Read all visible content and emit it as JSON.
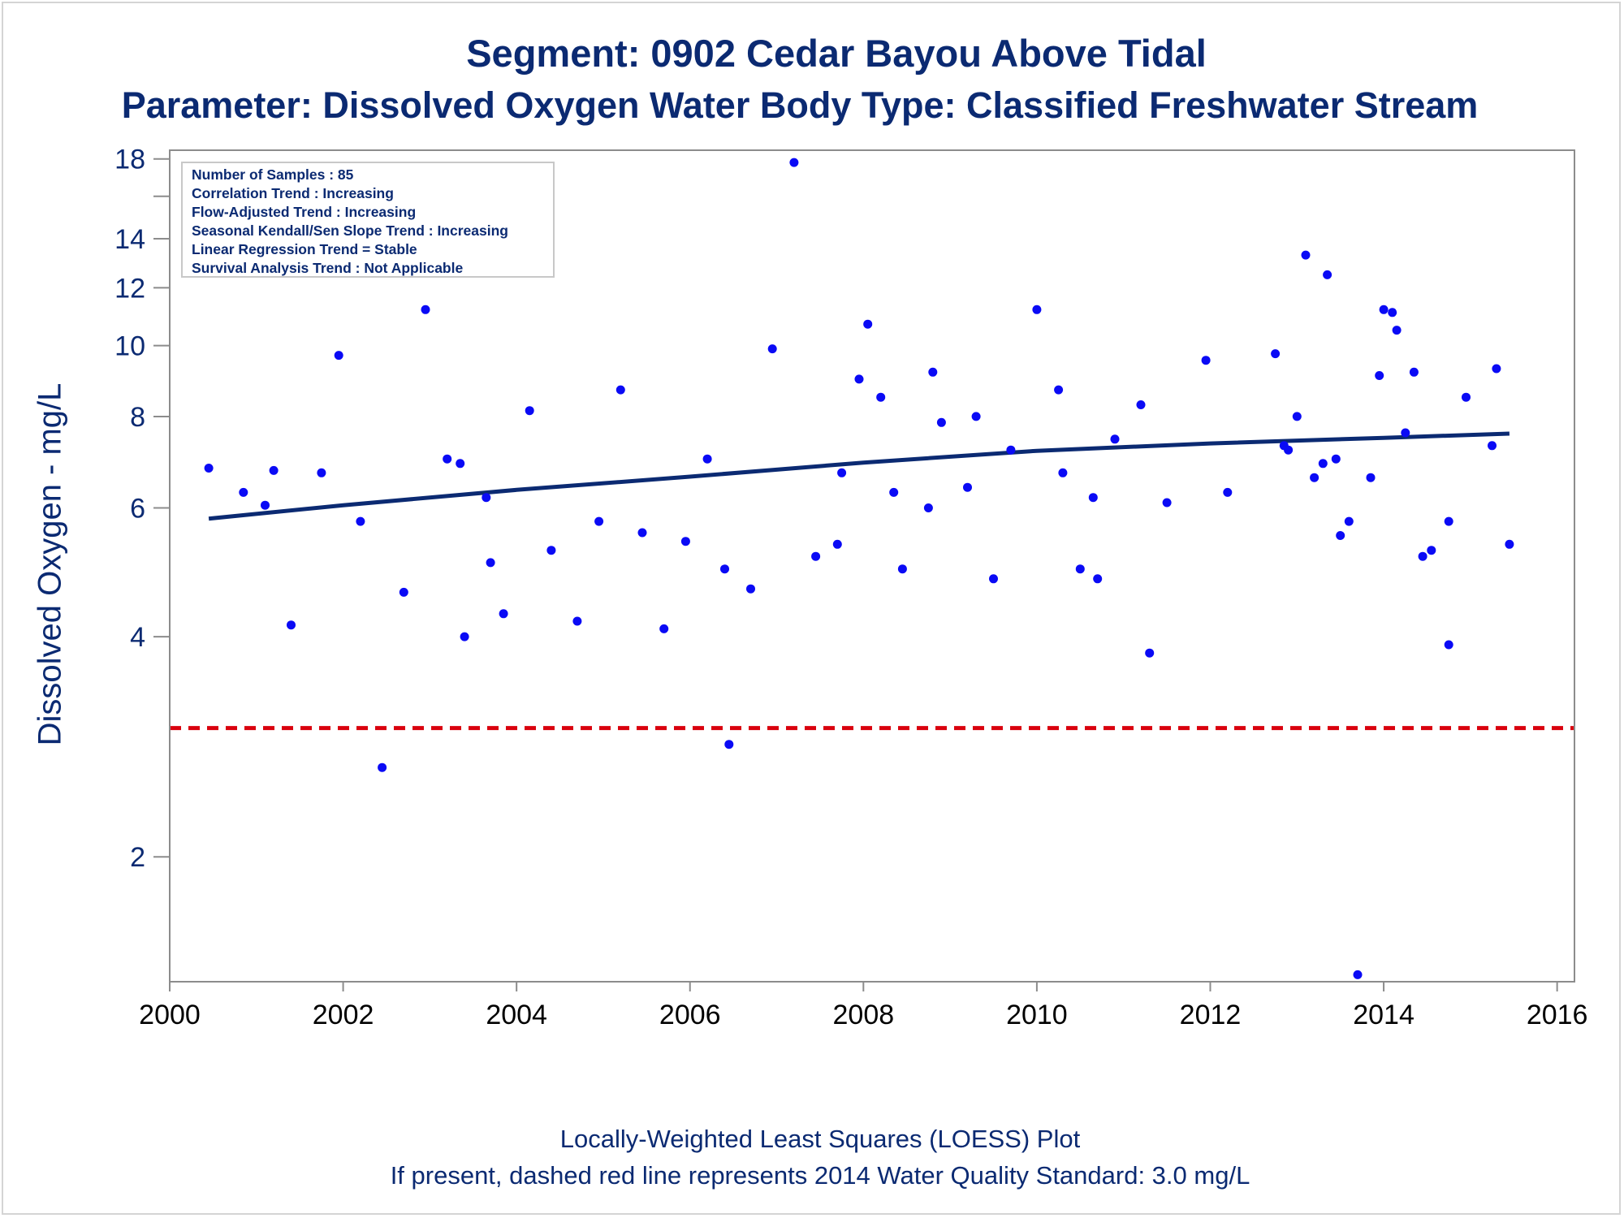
{
  "title": "Segment: 0902  Cedar Bayou Above Tidal",
  "subtitle": "Parameter: Dissolved Oxygen   Water Body Type: Classified Freshwater Stream",
  "footnote_1": "Locally-Weighted Least Squares (LOESS) Plot",
  "footnote_2": "If present, dashed red line represents 2014 Water Quality Standard: 3.0 mg/L",
  "info_box": [
    "Number of Samples : 85",
    "Correlation Trend : Increasing",
    "Flow-Adjusted Trend : Increasing",
    "Seasonal Kendall/Sen Slope Trend : Increasing",
    "Linear Regression Trend = Stable",
    "Survival Analysis Trend : Not Applicable"
  ],
  "colors": {
    "text": "#0b2a72",
    "points": "#0a0af5",
    "loess": "#0b2a72",
    "standard_line": "#d9000d",
    "axis": "#8c8c8c"
  },
  "chart_data": {
    "type": "scatter",
    "title": "Segment: 0902  Cedar Bayou Above Tidal",
    "subtitle": "Parameter: Dissolved Oxygen   Water Body Type: Classified Freshwater Stream",
    "xlabel": "",
    "ylabel": "Dissolved Oxygen - mg/L",
    "y_scale": "log",
    "xlim": [
      2000,
      2016.2
    ],
    "ylim": [
      1.35,
      18.5
    ],
    "x_ticks": [
      "2000",
      "2002",
      "2004",
      "2006",
      "2008",
      "2010",
      "2012",
      "2014",
      "2016"
    ],
    "y_ticks": [
      "2",
      "4",
      "6",
      "8",
      "10",
      "12",
      "14",
      "18"
    ],
    "y_minor_ticks": [
      16
    ],
    "grid": false,
    "legend": "none",
    "standard_line": {
      "value": 3.0,
      "style": "dashed",
      "color": "#d9000d"
    },
    "series": [
      {
        "type": "scatter",
        "points": [
          [
            2000.45,
            6.8
          ],
          [
            2000.85,
            6.3
          ],
          [
            2001.1,
            6.05
          ],
          [
            2001.2,
            6.75
          ],
          [
            2001.4,
            4.15
          ],
          [
            2001.75,
            6.7
          ],
          [
            2001.95,
            9.7
          ],
          [
            2002.2,
            5.75
          ],
          [
            2002.45,
            2.65
          ],
          [
            2002.7,
            4.6
          ],
          [
            2002.95,
            11.2
          ],
          [
            2003.2,
            7.0
          ],
          [
            2003.35,
            6.9
          ],
          [
            2003.4,
            4.0
          ],
          [
            2003.65,
            6.2
          ],
          [
            2003.7,
            5.05
          ],
          [
            2003.85,
            4.3
          ],
          [
            2004.15,
            8.15
          ],
          [
            2004.4,
            5.25
          ],
          [
            2004.7,
            4.2
          ],
          [
            2004.95,
            5.75
          ],
          [
            2005.2,
            8.7
          ],
          [
            2005.45,
            5.55
          ],
          [
            2005.7,
            4.1
          ],
          [
            2005.95,
            5.4
          ],
          [
            2006.2,
            7.0
          ],
          [
            2006.4,
            4.95
          ],
          [
            2006.45,
            2.85
          ],
          [
            2006.7,
            4.65
          ],
          [
            2006.95,
            9.9
          ],
          [
            2007.2,
            17.8
          ],
          [
            2007.45,
            5.15
          ],
          [
            2007.7,
            5.35
          ],
          [
            2007.75,
            6.7
          ],
          [
            2007.95,
            9.0
          ],
          [
            2008.05,
            10.7
          ],
          [
            2008.2,
            8.5
          ],
          [
            2008.35,
            6.3
          ],
          [
            2008.45,
            4.95
          ],
          [
            2008.75,
            6.0
          ],
          [
            2008.8,
            9.2
          ],
          [
            2008.9,
            7.85
          ],
          [
            2009.2,
            6.4
          ],
          [
            2009.3,
            8.0
          ],
          [
            2009.5,
            4.8
          ],
          [
            2009.7,
            7.2
          ],
          [
            2010.0,
            11.2
          ],
          [
            2010.25,
            8.7
          ],
          [
            2010.3,
            6.7
          ],
          [
            2010.5,
            4.95
          ],
          [
            2010.65,
            6.2
          ],
          [
            2010.7,
            4.8
          ],
          [
            2010.9,
            7.45
          ],
          [
            2011.2,
            8.3
          ],
          [
            2011.3,
            3.8
          ],
          [
            2011.5,
            6.1
          ],
          [
            2011.95,
            9.55
          ],
          [
            2012.2,
            6.3
          ],
          [
            2012.75,
            9.75
          ],
          [
            2012.85,
            7.3
          ],
          [
            2012.9,
            7.2
          ],
          [
            2013.0,
            8.0
          ],
          [
            2013.1,
            13.3
          ],
          [
            2013.2,
            6.6
          ],
          [
            2013.3,
            6.9
          ],
          [
            2013.35,
            12.5
          ],
          [
            2013.45,
            7.0
          ],
          [
            2013.5,
            5.5
          ],
          [
            2013.6,
            5.75
          ],
          [
            2013.7,
            1.38
          ],
          [
            2013.85,
            6.6
          ],
          [
            2013.95,
            9.1
          ],
          [
            2014.0,
            11.2
          ],
          [
            2014.1,
            11.1
          ],
          [
            2014.15,
            10.5
          ],
          [
            2014.25,
            7.6
          ],
          [
            2014.35,
            9.2
          ],
          [
            2014.45,
            5.15
          ],
          [
            2014.55,
            5.25
          ],
          [
            2014.75,
            3.9
          ],
          [
            2014.75,
            5.75
          ],
          [
            2014.95,
            8.5
          ],
          [
            2015.25,
            7.3
          ],
          [
            2015.3,
            9.3
          ],
          [
            2015.45,
            5.35
          ]
        ]
      },
      {
        "type": "line",
        "points": [
          [
            2000.45,
            5.8
          ],
          [
            2002.0,
            6.05
          ],
          [
            2004.0,
            6.35
          ],
          [
            2006.0,
            6.62
          ],
          [
            2008.0,
            6.92
          ],
          [
            2010.0,
            7.18
          ],
          [
            2012.0,
            7.35
          ],
          [
            2014.0,
            7.48
          ],
          [
            2015.45,
            7.58
          ]
        ]
      }
    ]
  }
}
